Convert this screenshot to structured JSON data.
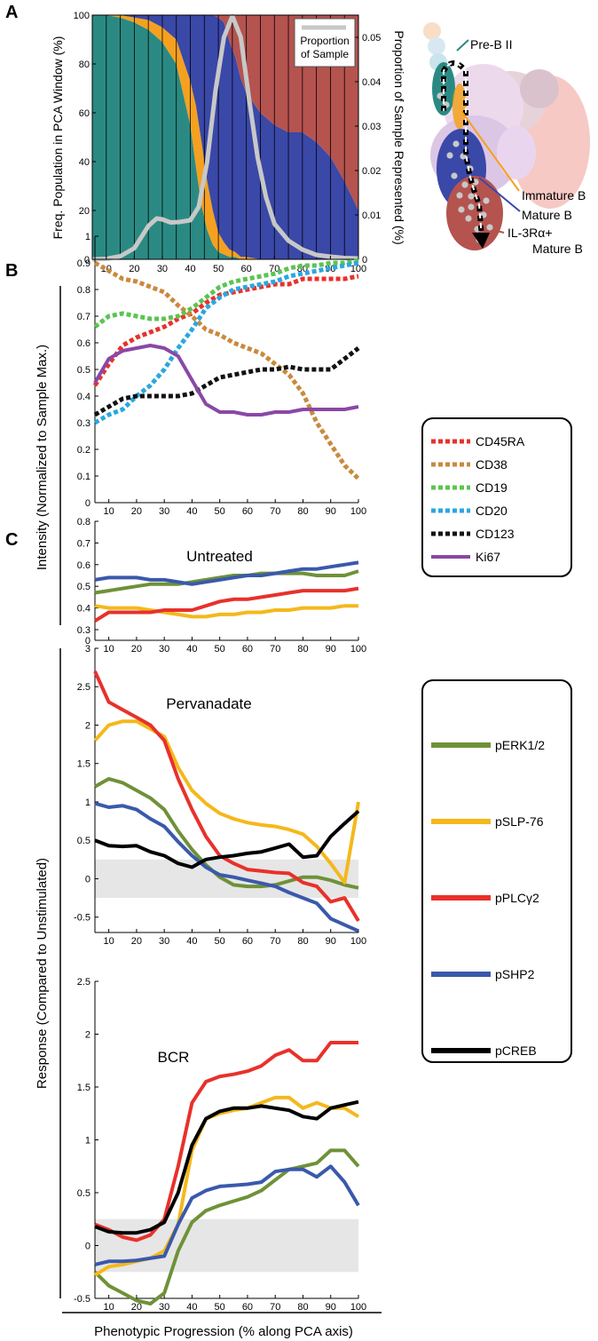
{
  "panel_letters": {
    "a": "A",
    "b": "B",
    "c1": "C",
    "c2": "C"
  },
  "colors": {
    "prebii": "#2a8a83",
    "immature": "#f5a11f",
    "mature": "#3a48a8",
    "il3": "#b5534f",
    "proportion": "#c8c8c8",
    "cd45ra": "#e8312b",
    "cd38": "#c98a3d",
    "cd19": "#5cc451",
    "cd20": "#2aa7df",
    "cd123": "#111111",
    "ki67": "#8a48a6",
    "perk": "#6f9138",
    "pslp": "#f5b81b",
    "pplc": "#e8312b",
    "pshp2": "#3a59ac",
    "pcreb": "#000000",
    "null_band": "#e6e6e6"
  },
  "shared_labels": {
    "y_intensity": "Intensity (Normalized to Sample Max.)",
    "y_response": "Response (Compared to Unstimulated)",
    "x_label": "Phenotypic Progression (% along PCA axis)"
  },
  "panelA": {
    "legend_label": "Proportion of Sample",
    "diagram_labels": {
      "prebii": "Pre-B II",
      "immature": "Immature B",
      "mature": "Mature B",
      "il3_line1": "IL-3Rα+",
      "il3_line2": "Mature B"
    }
  },
  "chart_data": [
    {
      "type": "area",
      "panel": "A",
      "ylabel": "Freq. Population in PCA Window (%)",
      "y2label": "Proportion of Sample Represented (%)",
      "xlim": [
        5,
        100
      ],
      "ylim": [
        0,
        100
      ],
      "y2lim": [
        0,
        0.055
      ],
      "xticks": [
        10,
        20,
        30,
        40,
        50,
        60,
        70,
        80,
        90,
        100
      ],
      "yticks": [
        0,
        20,
        40,
        60,
        80,
        100
      ],
      "y2ticks": [
        0,
        0.01,
        0.02,
        0.03,
        0.04,
        0.05
      ],
      "x": [
        5,
        10,
        15,
        20,
        25,
        30,
        35,
        40,
        42,
        44,
        46,
        48,
        50,
        52,
        54,
        56,
        58,
        60,
        65,
        70,
        75,
        80,
        85,
        90,
        95,
        100
      ],
      "stacked_series": [
        {
          "name": "Pre-B II",
          "values": [
            100,
            100,
            99,
            97,
            94,
            89,
            80,
            55,
            38,
            22,
            12,
            6,
            3,
            2,
            1,
            1,
            0,
            0,
            0,
            0,
            0,
            0,
            0,
            0,
            0,
            0
          ]
        },
        {
          "name": "Immature B",
          "values": [
            0,
            0,
            1,
            2,
            4,
            6,
            10,
            18,
            25,
            26,
            20,
            14,
            8,
            5,
            3,
            2,
            1,
            1,
            0,
            0,
            0,
            0,
            0,
            0,
            0,
            0
          ]
        },
        {
          "name": "Mature B",
          "values": [
            0,
            0,
            0,
            1,
            2,
            5,
            10,
            27,
            37,
            52,
            68,
            80,
            88,
            90,
            85,
            80,
            73,
            67,
            60,
            55,
            52,
            52,
            48,
            42,
            32,
            20
          ]
        },
        {
          "name": "IL-3Rα+ Mature B",
          "values": [
            0,
            0,
            0,
            0,
            0,
            0,
            0,
            0,
            0,
            0,
            0,
            0,
            1,
            3,
            11,
            17,
            26,
            32,
            40,
            45,
            48,
            48,
            52,
            58,
            68,
            80
          ]
        }
      ],
      "proportion_series": {
        "name": "Proportion of Sample",
        "x": [
          5,
          10,
          15,
          20,
          25,
          28,
          30,
          33,
          36,
          40,
          43,
          46,
          49,
          52,
          55,
          58,
          61,
          64,
          67,
          70,
          75,
          80,
          85,
          90,
          95,
          100
        ],
        "values": [
          0.0,
          0.0001,
          0.0007,
          0.0025,
          0.0075,
          0.0092,
          0.009,
          0.0083,
          0.0084,
          0.0088,
          0.0118,
          0.022,
          0.038,
          0.05,
          0.0548,
          0.05,
          0.036,
          0.023,
          0.014,
          0.008,
          0.0042,
          0.0022,
          0.001,
          0.0006,
          0.0003,
          0.0002
        ]
      }
    },
    {
      "type": "line",
      "panel": "B",
      "xlim": [
        5,
        100
      ],
      "ylim": [
        0,
        1
      ],
      "xticks": [
        10,
        20,
        30,
        40,
        50,
        60,
        70,
        80,
        90,
        100
      ],
      "yticks": [
        0,
        0.1,
        0.2,
        0.3,
        0.4,
        0.5,
        0.6,
        0.7,
        0.8,
        0.9,
        1
      ],
      "x": [
        5,
        10,
        15,
        20,
        25,
        30,
        35,
        40,
        45,
        50,
        55,
        60,
        65,
        70,
        75,
        80,
        85,
        90,
        95,
        100
      ],
      "series": [
        {
          "name": "CD45RA",
          "style": "dashed",
          "values": [
            0.44,
            0.52,
            0.59,
            0.62,
            0.64,
            0.66,
            0.69,
            0.71,
            0.75,
            0.78,
            0.79,
            0.8,
            0.81,
            0.82,
            0.82,
            0.84,
            0.84,
            0.84,
            0.84,
            0.85
          ]
        },
        {
          "name": "CD38",
          "style": "dashed",
          "values": [
            0.9,
            0.87,
            0.84,
            0.83,
            0.81,
            0.79,
            0.74,
            0.7,
            0.65,
            0.63,
            0.6,
            0.58,
            0.56,
            0.52,
            0.48,
            0.41,
            0.3,
            0.22,
            0.14,
            0.09
          ]
        },
        {
          "name": "CD19",
          "style": "dashed",
          "values": [
            0.66,
            0.7,
            0.71,
            0.7,
            0.69,
            0.69,
            0.7,
            0.73,
            0.77,
            0.81,
            0.83,
            0.84,
            0.85,
            0.86,
            0.88,
            0.89,
            0.89,
            0.9,
            0.9,
            0.91
          ]
        },
        {
          "name": "CD20",
          "style": "dashed",
          "values": [
            0.3,
            0.33,
            0.35,
            0.4,
            0.44,
            0.5,
            0.58,
            0.65,
            0.73,
            0.77,
            0.8,
            0.81,
            0.82,
            0.83,
            0.85,
            0.86,
            0.87,
            0.88,
            0.89,
            0.9
          ]
        },
        {
          "name": "CD123",
          "style": "dashed",
          "values": [
            0.33,
            0.36,
            0.39,
            0.4,
            0.4,
            0.4,
            0.4,
            0.41,
            0.44,
            0.47,
            0.48,
            0.49,
            0.5,
            0.5,
            0.51,
            0.5,
            0.5,
            0.5,
            0.54,
            0.58
          ]
        },
        {
          "name": "Ki67",
          "style": "solid",
          "values": [
            0.45,
            0.54,
            0.57,
            0.58,
            0.59,
            0.58,
            0.55,
            0.46,
            0.37,
            0.34,
            0.34,
            0.33,
            0.33,
            0.34,
            0.34,
            0.35,
            0.35,
            0.35,
            0.35,
            0.36
          ]
        }
      ]
    },
    {
      "type": "line",
      "panel": "C",
      "title": "Untreated",
      "xlim": [
        5,
        100
      ],
      "ylim": [
        0,
        0.8
      ],
      "xticks": [
        10,
        20,
        30,
        40,
        50,
        60,
        70,
        80,
        90,
        100
      ],
      "yticks": [
        0,
        0.3,
        0.4,
        0.5,
        0.6,
        0.7,
        0.8
      ],
      "x": [
        5,
        10,
        15,
        20,
        25,
        30,
        35,
        40,
        45,
        50,
        55,
        60,
        65,
        70,
        75,
        80,
        85,
        90,
        95,
        100
      ],
      "series": [
        {
          "name": "pERK1/2",
          "values": [
            0.47,
            0.48,
            0.49,
            0.5,
            0.51,
            0.51,
            0.51,
            0.52,
            0.53,
            0.54,
            0.55,
            0.55,
            0.56,
            0.56,
            0.56,
            0.56,
            0.55,
            0.55,
            0.55,
            0.57
          ]
        },
        {
          "name": "pSLP-76",
          "values": [
            0.41,
            0.4,
            0.4,
            0.4,
            0.39,
            0.38,
            0.37,
            0.36,
            0.36,
            0.37,
            0.37,
            0.38,
            0.38,
            0.39,
            0.39,
            0.4,
            0.4,
            0.4,
            0.41,
            0.41
          ]
        },
        {
          "name": "pPLCγ2",
          "values": [
            0.34,
            0.38,
            0.38,
            0.38,
            0.38,
            0.39,
            0.39,
            0.39,
            0.41,
            0.43,
            0.44,
            0.44,
            0.45,
            0.46,
            0.47,
            0.48,
            0.48,
            0.48,
            0.48,
            0.49
          ]
        },
        {
          "name": "pSHP2",
          "values": [
            0.53,
            0.54,
            0.54,
            0.54,
            0.53,
            0.53,
            0.52,
            0.51,
            0.52,
            0.53,
            0.54,
            0.55,
            0.55,
            0.56,
            0.57,
            0.58,
            0.58,
            0.59,
            0.6,
            0.61
          ]
        }
      ]
    },
    {
      "type": "line",
      "panel": "C",
      "title": "Pervanadate",
      "xlim": [
        5,
        100
      ],
      "ylim": [
        -0.7,
        3
      ],
      "xticks": [
        10,
        20,
        30,
        40,
        50,
        60,
        70,
        80,
        90,
        100
      ],
      "yticks": [
        -0.5,
        0,
        0.5,
        1,
        1.5,
        2,
        2.5,
        3
      ],
      "null_band": [
        -0.25,
        0.25
      ],
      "x": [
        5,
        10,
        15,
        20,
        25,
        30,
        35,
        40,
        45,
        50,
        55,
        60,
        65,
        70,
        75,
        80,
        85,
        90,
        95,
        100
      ],
      "series": [
        {
          "name": "pERK1/2",
          "values": [
            1.2,
            1.3,
            1.25,
            1.15,
            1.05,
            0.9,
            0.62,
            0.38,
            0.18,
            0.02,
            -0.08,
            -0.1,
            -0.1,
            -0.08,
            -0.03,
            0.02,
            0.02,
            -0.02,
            -0.08,
            -0.12
          ]
        },
        {
          "name": "pSLP-76",
          "values": [
            1.8,
            2.0,
            2.05,
            2.05,
            1.95,
            1.85,
            1.45,
            1.15,
            0.98,
            0.85,
            0.78,
            0.73,
            0.7,
            0.68,
            0.64,
            0.58,
            0.42,
            0.2,
            -0.05,
            1.0
          ]
        },
        {
          "name": "pPLCγ2",
          "values": [
            2.7,
            2.3,
            2.2,
            2.1,
            2.0,
            1.8,
            1.3,
            0.9,
            0.55,
            0.3,
            0.2,
            0.12,
            0.1,
            0.08,
            0.07,
            -0.05,
            -0.1,
            -0.3,
            -0.25,
            -0.55
          ]
        },
        {
          "name": "pSHP2",
          "values": [
            0.98,
            0.93,
            0.95,
            0.9,
            0.78,
            0.68,
            0.48,
            0.3,
            0.15,
            0.05,
            0.02,
            -0.02,
            -0.06,
            -0.1,
            -0.18,
            -0.25,
            -0.32,
            -0.52,
            -0.6,
            -0.68
          ]
        },
        {
          "name": "pCREB",
          "values": [
            0.5,
            0.43,
            0.42,
            0.43,
            0.35,
            0.3,
            0.2,
            0.15,
            0.25,
            0.28,
            0.3,
            0.33,
            0.35,
            0.4,
            0.45,
            0.28,
            0.3,
            0.55,
            0.72,
            0.88
          ]
        }
      ]
    },
    {
      "type": "line",
      "panel": "C",
      "title": "BCR",
      "xlim": [
        5,
        100
      ],
      "ylim": [
        -0.5,
        2.5
      ],
      "xticks": [
        10,
        20,
        30,
        40,
        50,
        60,
        70,
        80,
        90,
        100
      ],
      "yticks": [
        -0.5,
        0,
        0.5,
        1,
        1.5,
        2,
        2.5
      ],
      "null_band": [
        -0.25,
        0.25
      ],
      "x": [
        5,
        10,
        15,
        20,
        25,
        30,
        35,
        40,
        45,
        50,
        55,
        60,
        65,
        70,
        75,
        80,
        85,
        90,
        95,
        100
      ],
      "series": [
        {
          "name": "pERK1/2",
          "values": [
            -0.25,
            -0.38,
            -0.45,
            -0.52,
            -0.55,
            -0.45,
            -0.05,
            0.22,
            0.33,
            0.38,
            0.42,
            0.46,
            0.52,
            0.62,
            0.72,
            0.75,
            0.78,
            0.9,
            0.9,
            0.75
          ]
        },
        {
          "name": "pSLP-76",
          "values": [
            -0.28,
            -0.2,
            -0.18,
            -0.15,
            -0.12,
            -0.05,
            0.2,
            0.9,
            1.2,
            1.25,
            1.28,
            1.3,
            1.35,
            1.4,
            1.4,
            1.3,
            1.35,
            1.3,
            1.3,
            1.22
          ]
        },
        {
          "name": "pPLCγ2",
          "values": [
            0.2,
            0.15,
            0.08,
            0.05,
            0.1,
            0.25,
            0.75,
            1.35,
            1.55,
            1.6,
            1.62,
            1.65,
            1.7,
            1.8,
            1.85,
            1.75,
            1.75,
            1.92,
            1.92,
            1.92
          ]
        },
        {
          "name": "pSHP2",
          "values": [
            -0.18,
            -0.15,
            -0.15,
            -0.14,
            -0.12,
            -0.1,
            0.2,
            0.45,
            0.52,
            0.56,
            0.57,
            0.58,
            0.6,
            0.7,
            0.72,
            0.72,
            0.65,
            0.75,
            0.6,
            0.38
          ]
        },
        {
          "name": "pCREB",
          "values": [
            0.18,
            0.13,
            0.12,
            0.12,
            0.15,
            0.22,
            0.5,
            0.95,
            1.2,
            1.27,
            1.3,
            1.3,
            1.32,
            1.3,
            1.28,
            1.22,
            1.2,
            1.3,
            1.33,
            1.36
          ]
        }
      ]
    }
  ]
}
